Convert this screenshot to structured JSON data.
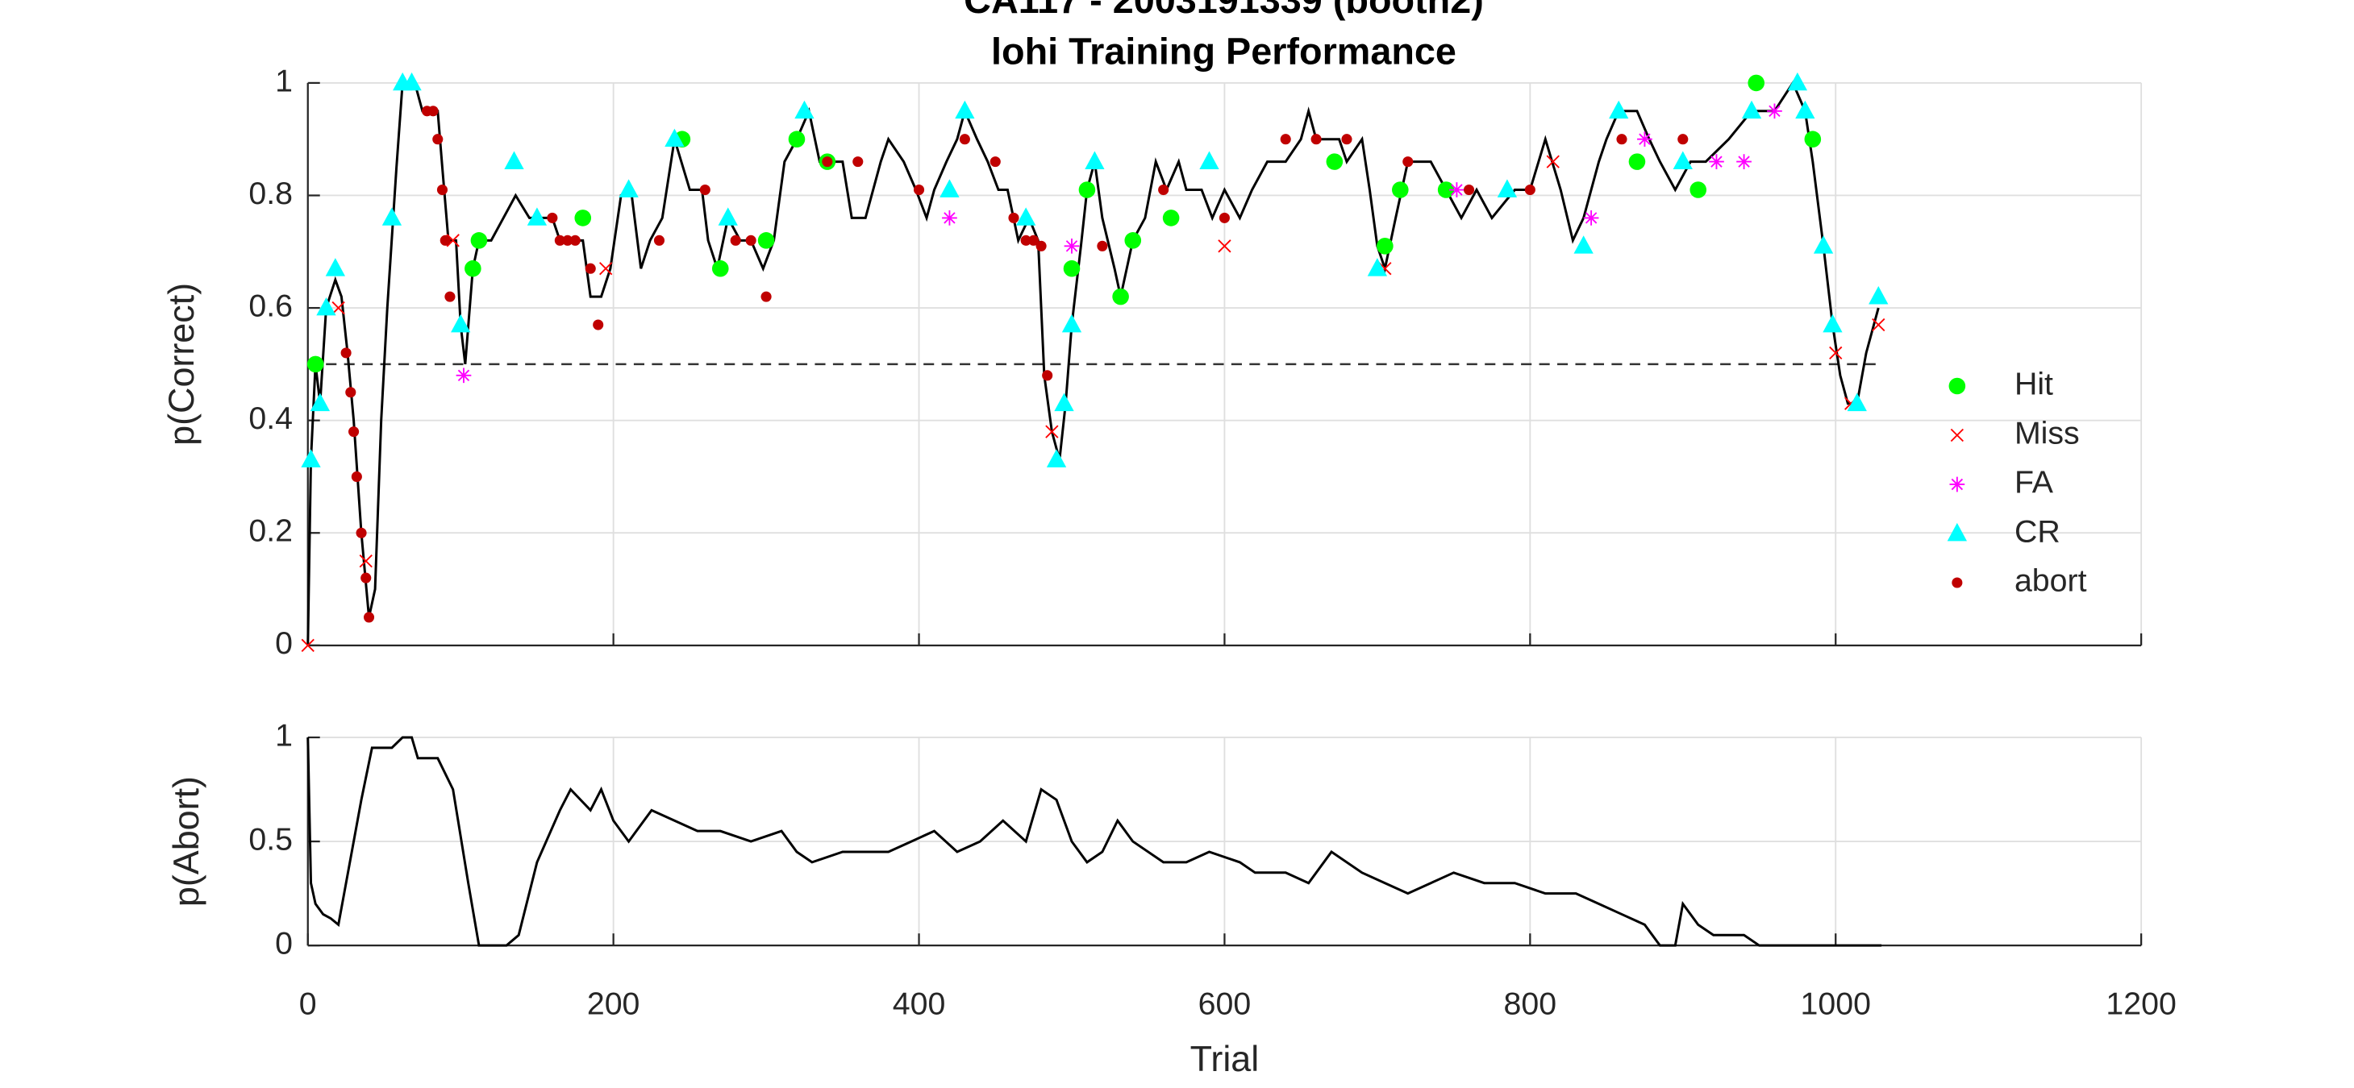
{
  "chart_data": [
    {
      "type": "line",
      "title": [
        "CA117 - 2003191339 (booth2)",
        "lohi Training Performance"
      ],
      "ylabel": "p(Correct)",
      "xlim": [
        0,
        1200
      ],
      "xticks": [
        0,
        200,
        400,
        600,
        800,
        1000,
        1200
      ],
      "ylim": [
        0,
        1
      ],
      "yticks": [
        0,
        0.2,
        0.4,
        0.6,
        0.8,
        1
      ],
      "grid": true,
      "color": "#000000",
      "reference_line": 0.5,
      "x": [
        0,
        2,
        5,
        8,
        12,
        18,
        22,
        26,
        30,
        35,
        40,
        44,
        48,
        52,
        58,
        62,
        70,
        75,
        85,
        88,
        92,
        97,
        100,
        103,
        108,
        112,
        120,
        128,
        136,
        145,
        160,
        165,
        180,
        185,
        192,
        198,
        205,
        212,
        218,
        224,
        232,
        240,
        250,
        258,
        262,
        268,
        275,
        283,
        290,
        298,
        305,
        312,
        320,
        328,
        335,
        350,
        356,
        365,
        375,
        380,
        390,
        398,
        405,
        410,
        418,
        425,
        430,
        438,
        445,
        452,
        458,
        465,
        472,
        478,
        482,
        487,
        492,
        496,
        500,
        506,
        510,
        515,
        520,
        528,
        532,
        540,
        548,
        555,
        562,
        570,
        575,
        585,
        592,
        600,
        610,
        618,
        628,
        640,
        650,
        655,
        660,
        675,
        680,
        690,
        695,
        700,
        705,
        712,
        720,
        735,
        745,
        755,
        765,
        775,
        790,
        800,
        810,
        820,
        828,
        835,
        845,
        850,
        858,
        870,
        878,
        885,
        895,
        905,
        915,
        930,
        945,
        960,
        972,
        980,
        985,
        992,
        998,
        1003,
        1008,
        1014,
        1020,
        1025,
        1028
      ],
      "values": [
        0,
        0.33,
        0.5,
        0.43,
        0.6,
        0.65,
        0.62,
        0.52,
        0.4,
        0.2,
        0.05,
        0.1,
        0.4,
        0.6,
        0.85,
        1,
        1,
        0.95,
        0.95,
        0.85,
        0.72,
        0.72,
        0.57,
        0.5,
        0.67,
        0.72,
        0.72,
        0.76,
        0.8,
        0.76,
        0.76,
        0.72,
        0.72,
        0.62,
        0.62,
        0.67,
        0.8,
        0.8,
        0.67,
        0.72,
        0.76,
        0.9,
        0.81,
        0.81,
        0.72,
        0.67,
        0.76,
        0.72,
        0.72,
        0.67,
        0.72,
        0.86,
        0.9,
        0.95,
        0.86,
        0.86,
        0.76,
        0.76,
        0.86,
        0.9,
        0.86,
        0.81,
        0.76,
        0.81,
        0.86,
        0.9,
        0.95,
        0.9,
        0.86,
        0.81,
        0.81,
        0.72,
        0.76,
        0.72,
        0.48,
        0.38,
        0.33,
        0.43,
        0.57,
        0.71,
        0.81,
        0.86,
        0.76,
        0.67,
        0.62,
        0.72,
        0.76,
        0.86,
        0.81,
        0.86,
        0.81,
        0.81,
        0.76,
        0.81,
        0.76,
        0.81,
        0.86,
        0.86,
        0.9,
        0.95,
        0.9,
        0.9,
        0.86,
        0.9,
        0.81,
        0.71,
        0.67,
        0.76,
        0.86,
        0.86,
        0.81,
        0.76,
        0.81,
        0.76,
        0.81,
        0.81,
        0.9,
        0.81,
        0.72,
        0.76,
        0.86,
        0.9,
        0.95,
        0.95,
        0.9,
        0.86,
        0.81,
        0.86,
        0.86,
        0.9,
        0.95,
        0.95,
        1,
        0.95,
        0.86,
        0.71,
        0.57,
        0.48,
        0.43,
        0.43,
        0.52,
        0.57,
        0.6
      ],
      "markers": [
        {
          "name": "Hit",
          "color": "#00ff00",
          "marker": "circle",
          "x": [
            5,
            108,
            112,
            180,
            245,
            270,
            300,
            320,
            340,
            500,
            510,
            532,
            540,
            565,
            672,
            705,
            715,
            745,
            870,
            910,
            948,
            985
          ],
          "values": [
            0.5,
            0.67,
            0.72,
            0.76,
            0.9,
            0.67,
            0.72,
            0.9,
            0.86,
            0.67,
            0.81,
            0.62,
            0.72,
            0.76,
            0.86,
            0.71,
            0.81,
            0.81,
            0.86,
            0.81,
            1,
            0.9
          ]
        },
        {
          "name": "Miss",
          "color": "#ff0000",
          "marker": "x",
          "x": [
            0,
            20,
            38,
            95,
            195,
            487,
            600,
            705,
            815,
            1000,
            1010,
            1028
          ],
          "values": [
            0,
            0.6,
            0.15,
            0.72,
            0.67,
            0.38,
            0.71,
            0.67,
            0.86,
            0.52,
            0.43,
            0.57
          ]
        },
        {
          "name": "FA",
          "color": "#ff00ff",
          "marker": "star",
          "x": [
            102,
            420,
            500,
            752,
            840,
            875,
            922,
            940,
            960
          ],
          "values": [
            0.48,
            0.76,
            0.71,
            0.81,
            0.76,
            0.9,
            0.86,
            0.86,
            0.95
          ]
        },
        {
          "name": "CR",
          "color": "#00ffff",
          "marker": "triangle",
          "x": [
            2,
            8,
            12,
            18,
            55,
            62,
            68,
            100,
            135,
            150,
            210,
            240,
            275,
            325,
            420,
            430,
            470,
            490,
            495,
            500,
            515,
            590,
            700,
            785,
            835,
            858,
            900,
            945,
            975,
            980,
            992,
            998,
            1014,
            1028
          ],
          "values": [
            0.33,
            0.43,
            0.6,
            0.67,
            0.76,
            1,
            1,
            0.57,
            0.86,
            0.76,
            0.81,
            0.9,
            0.76,
            0.95,
            0.81,
            0.95,
            0.76,
            0.33,
            0.43,
            0.57,
            0.86,
            0.86,
            0.67,
            0.81,
            0.71,
            0.95,
            0.86,
            0.95,
            1,
            0.95,
            0.71,
            0.57,
            0.43,
            0.62
          ]
        },
        {
          "name": "abort",
          "color": "#c00000",
          "marker": "dot",
          "x": [
            25,
            28,
            30,
            32,
            35,
            38,
            40,
            78,
            82,
            85,
            88,
            90,
            93,
            160,
            165,
            170,
            175,
            185,
            190,
            230,
            260,
            280,
            290,
            300,
            340,
            360,
            400,
            430,
            450,
            462,
            470,
            475,
            480,
            484,
            520,
            560,
            600,
            640,
            660,
            680,
            720,
            760,
            800,
            860,
            900
          ],
          "values": [
            0.52,
            0.45,
            0.38,
            0.3,
            0.2,
            0.12,
            0.05,
            0.95,
            0.95,
            0.9,
            0.81,
            0.72,
            0.62,
            0.76,
            0.72,
            0.72,
            0.72,
            0.67,
            0.57,
            0.72,
            0.81,
            0.72,
            0.72,
            0.62,
            0.86,
            0.86,
            0.81,
            0.9,
            0.86,
            0.76,
            0.72,
            0.72,
            0.71,
            0.48,
            0.71,
            0.81,
            0.76,
            0.9,
            0.9,
            0.9,
            0.86,
            0.81,
            0.81,
            0.9,
            0.9
          ]
        }
      ]
    },
    {
      "type": "line",
      "ylabel": "p(Abort)",
      "xlabel": "Trial",
      "xlim": [
        0,
        1200
      ],
      "xticks": [
        0,
        200,
        400,
        600,
        800,
        1000,
        1200
      ],
      "ylim": [
        0,
        1
      ],
      "yticks": [
        0,
        0.5,
        1
      ],
      "grid": true,
      "color": "#000000",
      "x": [
        0,
        2,
        5,
        10,
        15,
        20,
        25,
        35,
        42,
        55,
        62,
        68,
        72,
        85,
        95,
        105,
        112,
        130,
        138,
        150,
        165,
        172,
        185,
        192,
        200,
        210,
        215,
        225,
        240,
        255,
        270,
        290,
        310,
        320,
        330,
        350,
        380,
        395,
        410,
        425,
        440,
        455,
        470,
        480,
        490,
        500,
        510,
        520,
        530,
        540,
        560,
        575,
        590,
        610,
        620,
        640,
        655,
        670,
        690,
        705,
        720,
        735,
        750,
        770,
        790,
        810,
        830,
        845,
        860,
        875,
        885,
        895,
        900,
        910,
        920,
        940,
        950,
        1030
      ],
      "values": [
        1,
        0.3,
        0.2,
        0.15,
        0.13,
        0.1,
        0.3,
        0.7,
        0.95,
        0.95,
        1,
        1,
        0.9,
        0.9,
        0.75,
        0.3,
        0,
        0,
        0.05,
        0.4,
        0.65,
        0.75,
        0.65,
        0.75,
        0.6,
        0.5,
        0.55,
        0.65,
        0.6,
        0.55,
        0.55,
        0.5,
        0.55,
        0.45,
        0.4,
        0.45,
        0.45,
        0.5,
        0.55,
        0.45,
        0.5,
        0.6,
        0.5,
        0.75,
        0.7,
        0.5,
        0.4,
        0.45,
        0.6,
        0.5,
        0.4,
        0.4,
        0.45,
        0.4,
        0.35,
        0.35,
        0.3,
        0.45,
        0.35,
        0.3,
        0.25,
        0.3,
        0.35,
        0.3,
        0.3,
        0.25,
        0.25,
        0.2,
        0.15,
        0.1,
        0,
        0,
        0.2,
        0.1,
        0.05,
        0.05,
        0,
        0
      ]
    }
  ]
}
